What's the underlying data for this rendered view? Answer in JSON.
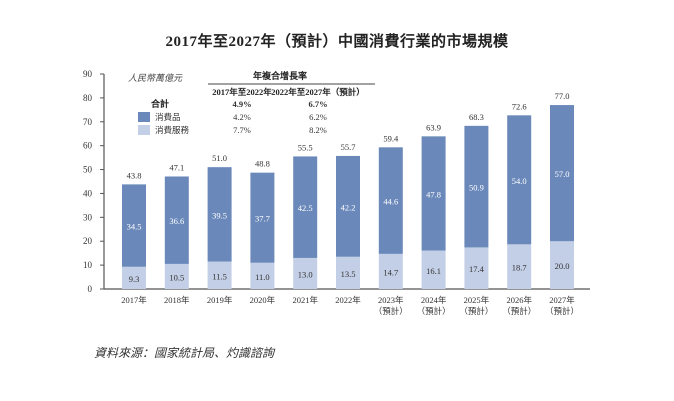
{
  "chart_data": {
    "type": "bar",
    "stacked": true,
    "title": "2017年至2027年（預計）中國消費行業的市場規模",
    "ylabel": "人民幣萬億元",
    "xlabel": "",
    "ylim": [
      0,
      90
    ],
    "yticks": [
      0,
      10,
      20,
      30,
      40,
      50,
      60,
      70,
      80,
      90
    ],
    "grid": false,
    "categories": [
      {
        "year": "2017年",
        "note": ""
      },
      {
        "year": "2018年",
        "note": ""
      },
      {
        "year": "2019年",
        "note": ""
      },
      {
        "year": "2020年",
        "note": ""
      },
      {
        "year": "2021年",
        "note": ""
      },
      {
        "year": "2022年",
        "note": ""
      },
      {
        "year": "2023年",
        "note": "（預計）"
      },
      {
        "year": "2024年",
        "note": "（預計）"
      },
      {
        "year": "2025年",
        "note": "（預計）"
      },
      {
        "year": "2026年",
        "note": "（預計）"
      },
      {
        "year": "2027年",
        "note": "（預計）"
      }
    ],
    "series": [
      {
        "name": "消費服務",
        "color": "#c3cfe6",
        "label_color": "#333333",
        "values": [
          9.3,
          10.5,
          11.5,
          11.0,
          13.0,
          13.5,
          14.7,
          16.1,
          17.4,
          18.7,
          20.0
        ]
      },
      {
        "name": "消費品",
        "color": "#6a89ba",
        "label_color": "#ffffff",
        "values": [
          34.5,
          36.6,
          39.5,
          37.7,
          42.5,
          42.2,
          44.6,
          47.8,
          50.9,
          54.0,
          57.0
        ]
      }
    ],
    "totals": [
      "43.8",
      "47.1",
      "51.0",
      "48.8",
      "55.5",
      "55.7",
      "59.4",
      "63.9",
      "68.3",
      "72.6",
      "77.0"
    ],
    "legend": {
      "placement": "top-left",
      "header": "年複合增長率",
      "columns": [
        "2017年至2022年",
        "2022年至2027年（預計）"
      ],
      "rows": [
        {
          "label": "合計",
          "values": [
            "4.9%",
            "6.7%"
          ],
          "bold": true,
          "swatch": ""
        },
        {
          "label": "消費品",
          "values": [
            "4.2%",
            "6.2%"
          ],
          "bold": false,
          "swatch": "#6a89ba"
        },
        {
          "label": "消費服務",
          "values": [
            "7.7%",
            "8.2%"
          ],
          "bold": false,
          "swatch": "#c3cfe6"
        }
      ]
    }
  },
  "source": "資料來源：國家統計局、灼識諮詢"
}
